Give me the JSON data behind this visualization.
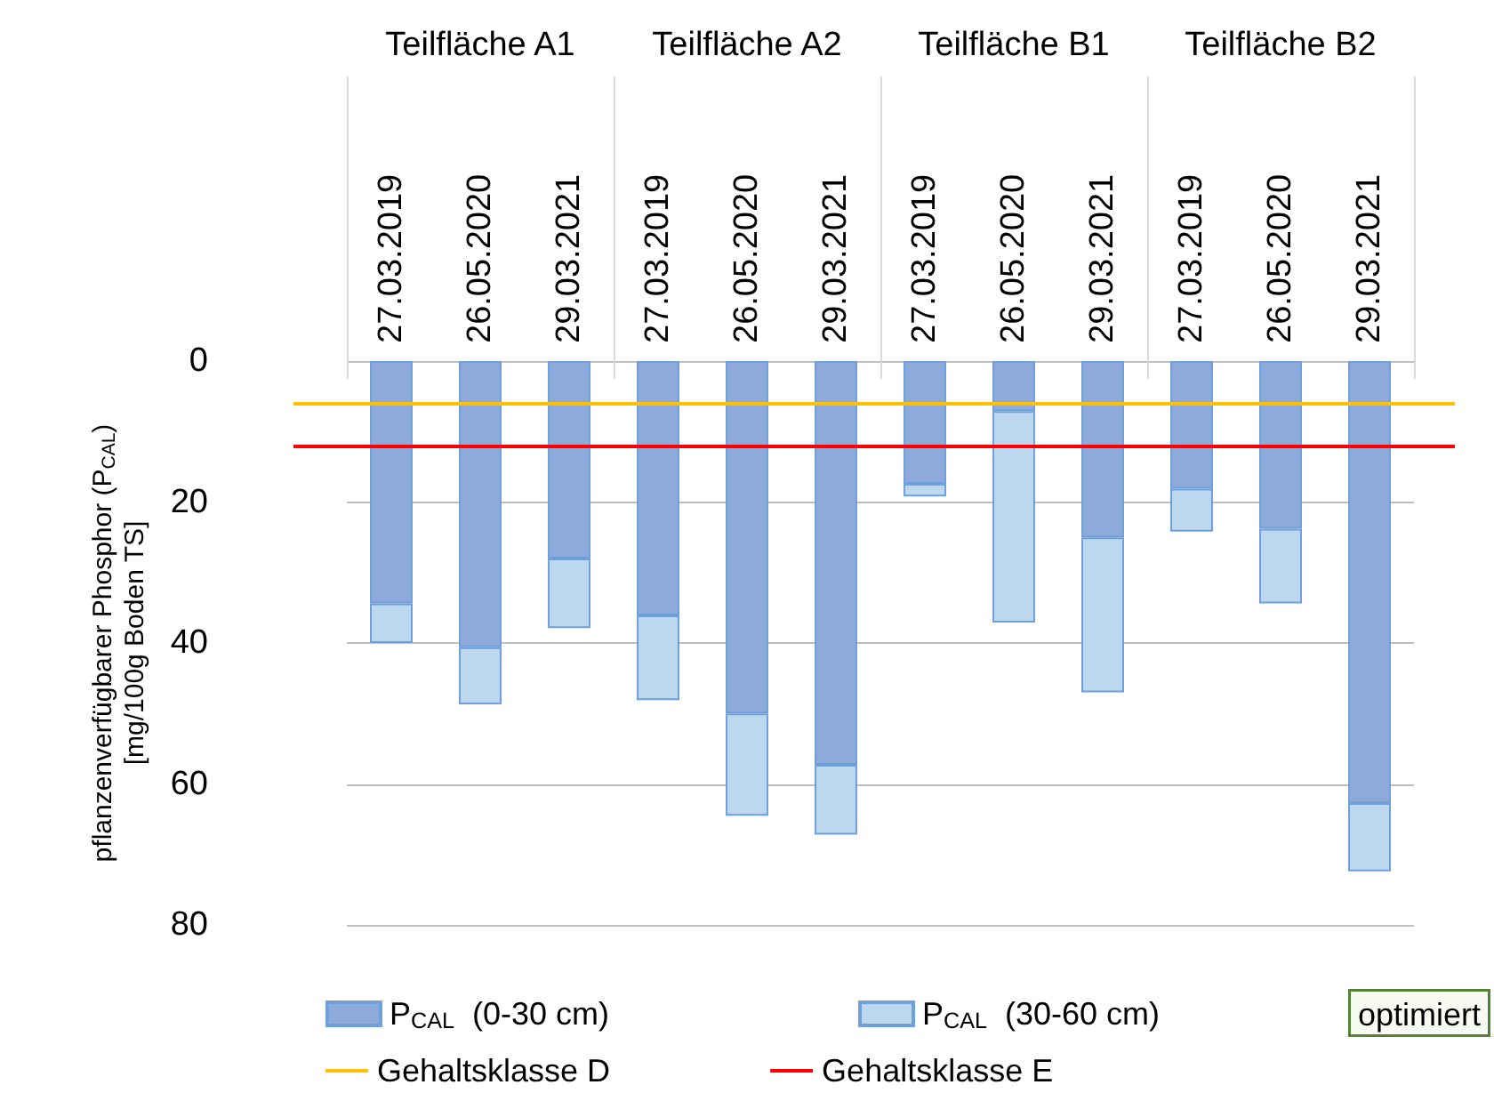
{
  "chart_data": {
    "type": "bar",
    "stacked": true,
    "ylabel": "pflanzenverfügbarer Phosphor (P$_{CAL}$)\n[mg/100g Boden TS]",
    "categories": [
      "27.03.2019",
      "26.05.2020",
      "29.03.2021",
      "27.03.2019",
      "26.05.2020",
      "29.03.2021",
      "27.03.2019",
      "26.05.2020",
      "29.03.2021",
      "27.03.2019",
      "26.05.2020",
      "29.03.2021"
    ],
    "annotations": [
      "Teilfläche A1",
      "Teilfläche A2",
      "Teilfläche B1",
      "Teilfläche B2",
      "optimiert"
    ],
    "series": [
      {
        "name": "P$_{CAL}$  (0-30 cm)",
        "color": "#8eaadb",
        "values": [
          34.4,
          40.6,
          28.0,
          36.1,
          50.0,
          57.3,
          17.4,
          7.1,
          25.0,
          18.1,
          23.8,
          62.7
        ]
      },
      {
        "name": "P$_{CAL}$  (30-60 cm)",
        "color": "#bdd7ee",
        "values": [
          5.6,
          8.1,
          9.9,
          12.0,
          14.5,
          9.9,
          1.8,
          30.0,
          22.0,
          6.1,
          10.6,
          9.7
        ]
      }
    ],
    "ref_lines": [
      {
        "axis": "y",
        "value": 6,
        "label": "Gehaltsklasse D",
        "color": "#ffc000"
      },
      {
        "axis": "y",
        "value": 12,
        "label": "Gehaltsklasse E",
        "color": "#ff0000"
      }
    ],
    "ylim": [
      80,
      0
    ],
    "yticks": [
      0,
      20,
      40,
      60,
      80
    ],
    "grid": "y",
    "legend": "bottom"
  }
}
